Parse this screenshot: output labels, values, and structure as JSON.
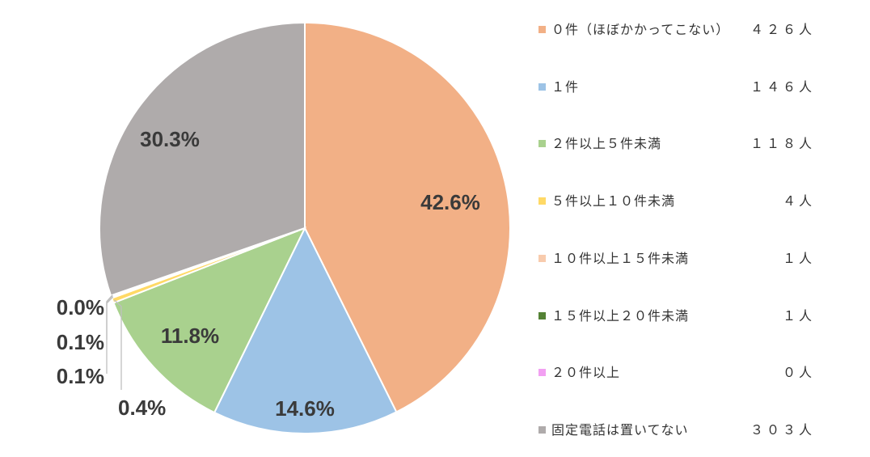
{
  "chart_data": {
    "type": "pie",
    "slices": [
      {
        "name": "０件（ほぼかかってこない）",
        "count": "４２６人",
        "value": 42.6,
        "label": "42.6%",
        "color": "#F2B086"
      },
      {
        "name": "１件",
        "count": "１４６人",
        "value": 14.6,
        "label": "14.6%",
        "color": "#9DC3E6"
      },
      {
        "name": "２件以上５件未満",
        "count": "１１８人",
        "value": 11.8,
        "label": "11.8%",
        "color": "#A9D18E"
      },
      {
        "name": "５件以上１０件未満",
        "count": "４人",
        "value": 0.4,
        "label": "0.4%",
        "color": "#FFD966"
      },
      {
        "name": "１０件以上１５件未満",
        "count": "１人",
        "value": 0.1,
        "label": "0.1%",
        "color": "#F8CBAD"
      },
      {
        "name": "１５件以上２０件未満",
        "count": "１人",
        "value": 0.1,
        "label": "0.1%",
        "color": "#548235"
      },
      {
        "name": "２０件以上",
        "count": "０人",
        "value": 0.0,
        "label": "0.0%",
        "color": "#F2A0F2"
      },
      {
        "name": "固定電話は置いてない",
        "count": "３０３人",
        "value": 30.3,
        "label": "30.3%",
        "color": "#AFABAB"
      }
    ],
    "legend_position": "right",
    "start": "top, clockwise"
  }
}
